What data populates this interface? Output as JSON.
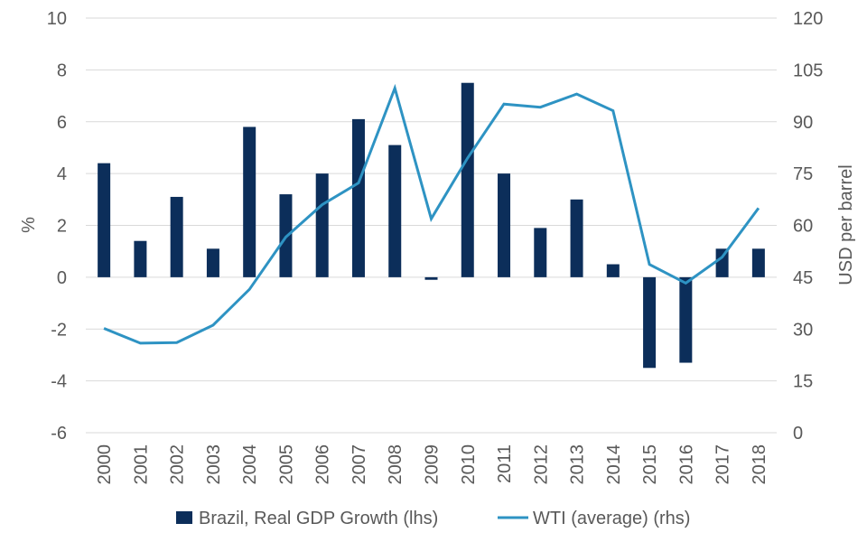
{
  "chart_data": {
    "type": "bar+line",
    "categories": [
      "2000",
      "2001",
      "2002",
      "2003",
      "2004",
      "2005",
      "2006",
      "2007",
      "2008",
      "2009",
      "2010",
      "2011",
      "2012",
      "2013",
      "2014",
      "2015",
      "2016",
      "2017",
      "2018"
    ],
    "series": [
      {
        "name": "Brazil, Real GDP Growth (lhs)",
        "type": "bar",
        "axis": "left",
        "values": [
          4.4,
          1.4,
          3.1,
          1.1,
          5.8,
          3.2,
          4.0,
          6.1,
          5.1,
          -0.1,
          7.5,
          4.0,
          1.9,
          3.0,
          0.5,
          -3.5,
          -3.3,
          1.1,
          1.1
        ]
      },
      {
        "name": "WTI (average) (rhs)",
        "type": "line",
        "axis": "right",
        "values": [
          30.2,
          25.9,
          26.1,
          31.1,
          41.5,
          56.6,
          66.0,
          72.3,
          99.7,
          61.9,
          79.5,
          95.1,
          94.2,
          98.0,
          93.2,
          48.7,
          43.3,
          50.8,
          65.0
        ]
      }
    ],
    "left_axis": {
      "label": "%",
      "ylim": [
        -6,
        10
      ],
      "ticks": [
        -6,
        -4,
        -2,
        0,
        2,
        4,
        6,
        8,
        10
      ]
    },
    "right_axis": {
      "label": "USD per barrel",
      "ylim": [
        0,
        120
      ],
      "ticks": [
        0,
        15,
        30,
        45,
        60,
        75,
        90,
        105,
        120
      ]
    },
    "grid": true,
    "legend_position": "bottom",
    "colors": {
      "bar": "#0c2e5a",
      "line": "#2e93c3",
      "grid": "#d9d9d9",
      "text": "#595959"
    }
  }
}
